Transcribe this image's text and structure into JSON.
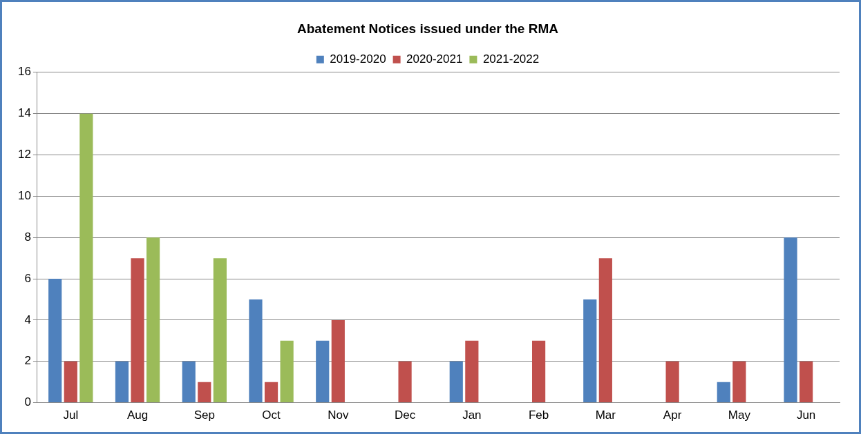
{
  "chart_data": {
    "type": "bar",
    "title": "Abatement Notices issued under the RMA",
    "categories": [
      "Jul",
      "Aug",
      "Sep",
      "Oct",
      "Nov",
      "Dec",
      "Jan",
      "Feb",
      "Mar",
      "Apr",
      "May",
      "Jun"
    ],
    "series": [
      {
        "name": "2019-2020",
        "color": "#4f81bd",
        "values": [
          6,
          2,
          2,
          5,
          3,
          null,
          2,
          null,
          5,
          null,
          1,
          8
        ]
      },
      {
        "name": "2020-2021",
        "color": "#c0504d",
        "values": [
          2,
          7,
          1,
          1,
          4,
          2,
          3,
          3,
          7,
          2,
          2,
          2
        ]
      },
      {
        "name": "2021-2022",
        "color": "#9bbb59",
        "values": [
          14,
          8,
          7,
          3,
          null,
          null,
          null,
          null,
          null,
          null,
          null,
          null
        ]
      }
    ],
    "ylim": [
      0,
      16
    ],
    "yticks": [
      0,
      2,
      4,
      6,
      8,
      10,
      12,
      14,
      16
    ],
    "grid": "y",
    "legend": "top"
  }
}
